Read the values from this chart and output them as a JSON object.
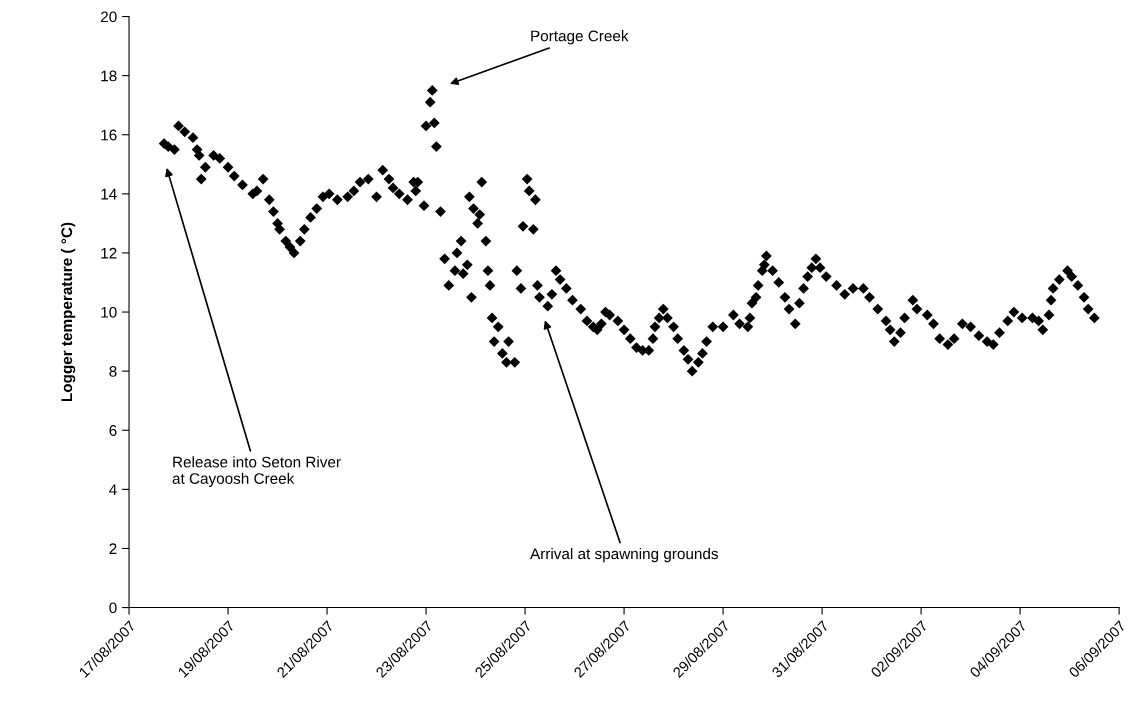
{
  "chart_data": {
    "type": "scatter",
    "ylabel": "Logger temperature ( °C)",
    "marker": "diamond",
    "grid": false,
    "legend": false,
    "xlim": [
      "2007-08-17",
      "2007-09-06"
    ],
    "xticks": [
      {
        "value": "2007-08-17",
        "label": "17/08/2007"
      },
      {
        "value": "2007-08-19",
        "label": "19/08/2007"
      },
      {
        "value": "2007-08-21",
        "label": "21/08/2007"
      },
      {
        "value": "2007-08-23",
        "label": "23/08/2007"
      },
      {
        "value": "2007-08-25",
        "label": "25/08/2007"
      },
      {
        "value": "2007-08-27",
        "label": "27/08/2007"
      },
      {
        "value": "2007-08-29",
        "label": "29/08/2007"
      },
      {
        "value": "2007-08-31",
        "label": "31/08/2007"
      },
      {
        "value": "2007-09-02",
        "label": "02/09/2007"
      },
      {
        "value": "2007-09-04",
        "label": "04/09/2007"
      },
      {
        "value": "2007-09-06",
        "label": "06/09/2007"
      }
    ],
    "ylim": [
      0,
      20
    ],
    "yticks": [
      0,
      2,
      4,
      6,
      8,
      10,
      12,
      14,
      16,
      18,
      20
    ],
    "annotations": [
      "Release into Seton River\nat Cayoosh Creek",
      "Portage Creek",
      "Arrival at spawning grounds"
    ],
    "series": [
      {
        "color": "#000000",
        "x": [
          "2007-08-17T17:00",
          "2007-08-17T19:00",
          "2007-08-17T22:00",
          "2007-08-18T00:00",
          "2007-08-18T03:00",
          "2007-08-18T07:00",
          "2007-08-18T09:00",
          "2007-08-18T10:00",
          "2007-08-18T11:00",
          "2007-08-18T13:00",
          "2007-08-18T17:00",
          "2007-08-18T20:00",
          "2007-08-19T00:00",
          "2007-08-19T03:00",
          "2007-08-19T07:00",
          "2007-08-19T12:00",
          "2007-08-19T14:00",
          "2007-08-19T17:00",
          "2007-08-19T20:00",
          "2007-08-19T22:00",
          "2007-08-20T00:00",
          "2007-08-20T01:00",
          "2007-08-20T04:00",
          "2007-08-20T06:00",
          "2007-08-20T08:00",
          "2007-08-20T11:00",
          "2007-08-20T13:00",
          "2007-08-20T16:00",
          "2007-08-20T19:00",
          "2007-08-20T22:00",
          "2007-08-21T01:00",
          "2007-08-21T05:00",
          "2007-08-21T10:00",
          "2007-08-21T13:00",
          "2007-08-21T16:00",
          "2007-08-21T20:00",
          "2007-08-22T00:00",
          "2007-08-22T03:00",
          "2007-08-22T06:00",
          "2007-08-22T08:00",
          "2007-08-22T11:00",
          "2007-08-22T15:00",
          "2007-08-22T18:00",
          "2007-08-22T19:00",
          "2007-08-22T20:00",
          "2007-08-22T23:00",
          "2007-08-23T00:00",
          "2007-08-23T02:00",
          "2007-08-23T03:00",
          "2007-08-23T04:00",
          "2007-08-23T05:00",
          "2007-08-23T07:00",
          "2007-08-23T09:00",
          "2007-08-23T11:00",
          "2007-08-23T14:00",
          "2007-08-23T15:00",
          "2007-08-23T17:00",
          "2007-08-23T18:00",
          "2007-08-23T20:00",
          "2007-08-23T21:00",
          "2007-08-23T22:00",
          "2007-08-23T23:00",
          "2007-08-24T01:00",
          "2007-08-24T02:00",
          "2007-08-24T03:00",
          "2007-08-24T05:00",
          "2007-08-24T06:00",
          "2007-08-24T07:00",
          "2007-08-24T08:00",
          "2007-08-24T09:00",
          "2007-08-24T11:00",
          "2007-08-24T13:00",
          "2007-08-24T15:00",
          "2007-08-24T16:00",
          "2007-08-24T19:00",
          "2007-08-24T20:00",
          "2007-08-24T22:00",
          "2007-08-24T23:00",
          "2007-08-25T01:00",
          "2007-08-25T02:00",
          "2007-08-25T04:00",
          "2007-08-25T05:00",
          "2007-08-25T06:00",
          "2007-08-25T07:00",
          "2007-08-25T11:00",
          "2007-08-25T13:00",
          "2007-08-25T15:00",
          "2007-08-25T17:00",
          "2007-08-25T20:00",
          "2007-08-25T23:00",
          "2007-08-26T03:00",
          "2007-08-26T06:00",
          "2007-08-26T09:00",
          "2007-08-26T11:00",
          "2007-08-26T13:00",
          "2007-08-26T15:00",
          "2007-08-26T17:00",
          "2007-08-26T21:00",
          "2007-08-27T00:00",
          "2007-08-27T03:00",
          "2007-08-27T06:00",
          "2007-08-27T09:00",
          "2007-08-27T12:00",
          "2007-08-27T14:00",
          "2007-08-27T15:00",
          "2007-08-27T17:00",
          "2007-08-27T19:00",
          "2007-08-27T21:00",
          "2007-08-28T00:00",
          "2007-08-28T02:00",
          "2007-08-28T05:00",
          "2007-08-28T07:00",
          "2007-08-28T09:00",
          "2007-08-28T12:00",
          "2007-08-28T14:00",
          "2007-08-28T16:00",
          "2007-08-28T19:00",
          "2007-08-29T00:00",
          "2007-08-29T05:00",
          "2007-08-29T08:00",
          "2007-08-29T12:00",
          "2007-08-29T13:00",
          "2007-08-29T14:00",
          "2007-08-29T16:00",
          "2007-08-29T17:00",
          "2007-08-29T19:00",
          "2007-08-29T20:00",
          "2007-08-29T21:00",
          "2007-08-30T00:00",
          "2007-08-30T03:00",
          "2007-08-30T06:00",
          "2007-08-30T08:00",
          "2007-08-30T11:00",
          "2007-08-30T13:00",
          "2007-08-30T15:00",
          "2007-08-30T17:00",
          "2007-08-30T19:00",
          "2007-08-30T21:00",
          "2007-08-30T23:00",
          "2007-08-31T02:00",
          "2007-08-31T07:00",
          "2007-08-31T11:00",
          "2007-08-31T15:00",
          "2007-08-31T20:00",
          "2007-08-31T23:00",
          "2007-09-01T03:00",
          "2007-09-01T07:00",
          "2007-09-01T09:00",
          "2007-09-01T11:00",
          "2007-09-01T14:00",
          "2007-09-01T16:00",
          "2007-09-01T20:00",
          "2007-09-01T22:00",
          "2007-09-02T03:00",
          "2007-09-02T06:00",
          "2007-09-02T09:00",
          "2007-09-02T13:00",
          "2007-09-02T16:00",
          "2007-09-02T20:00",
          "2007-09-03T00:00",
          "2007-09-03T04:00",
          "2007-09-03T08:00",
          "2007-09-03T11:00",
          "2007-09-03T14:00",
          "2007-09-03T18:00",
          "2007-09-03T21:00",
          "2007-09-04T01:00",
          "2007-09-04T06:00",
          "2007-09-04T09:00",
          "2007-09-04T11:00",
          "2007-09-04T14:00",
          "2007-09-04T15:00",
          "2007-09-04T16:00",
          "2007-09-04T19:00",
          "2007-09-04T23:00",
          "2007-09-05T01:00",
          "2007-09-05T04:00",
          "2007-09-05T07:00",
          "2007-09-05T09:00",
          "2007-09-05T12:00"
        ],
        "values": [
          15.7,
          15.6,
          15.5,
          16.3,
          16.1,
          15.9,
          15.5,
          15.3,
          14.5,
          14.9,
          15.3,
          15.2,
          14.9,
          14.6,
          14.3,
          14.0,
          14.1,
          14.5,
          13.8,
          13.4,
          13.0,
          12.8,
          12.4,
          12.2,
          12.0,
          12.4,
          12.8,
          13.2,
          13.5,
          13.9,
          14.0,
          13.8,
          13.9,
          14.1,
          14.4,
          14.5,
          13.9,
          14.8,
          14.5,
          14.2,
          14.0,
          13.8,
          14.4,
          14.1,
          14.4,
          13.6,
          16.3,
          17.1,
          17.5,
          16.4,
          15.6,
          13.4,
          11.8,
          10.9,
          11.4,
          12.0,
          12.4,
          11.3,
          11.6,
          13.9,
          10.5,
          13.5,
          13.0,
          13.3,
          14.4,
          12.4,
          11.4,
          10.9,
          9.8,
          9.0,
          9.5,
          8.6,
          8.3,
          9.0,
          8.3,
          11.4,
          10.8,
          12.9,
          14.5,
          14.1,
          12.8,
          13.8,
          10.9,
          10.5,
          10.2,
          10.6,
          11.4,
          11.1,
          10.8,
          10.4,
          10.1,
          9.7,
          9.5,
          9.4,
          9.6,
          10.0,
          9.9,
          9.7,
          9.4,
          9.1,
          8.8,
          8.7,
          8.7,
          9.1,
          9.5,
          9.8,
          10.1,
          9.8,
          9.5,
          9.1,
          8.7,
          8.4,
          8.0,
          8.3,
          8.6,
          9.0,
          9.5,
          9.5,
          9.9,
          9.6,
          9.5,
          9.8,
          10.3,
          10.5,
          10.9,
          11.4,
          11.6,
          11.9,
          11.4,
          11.0,
          10.5,
          10.1,
          9.6,
          10.3,
          10.8,
          11.2,
          11.5,
          11.8,
          11.5,
          11.2,
          10.9,
          10.6,
          10.8,
          10.8,
          10.5,
          10.1,
          9.7,
          9.4,
          9.0,
          9.3,
          9.8,
          10.4,
          10.1,
          9.9,
          9.6,
          9.1,
          8.9,
          9.1,
          9.6,
          9.5,
          9.2,
          9.0,
          8.9,
          9.3,
          9.7,
          10.0,
          9.8,
          9.8,
          9.7,
          9.4,
          9.9,
          10.4,
          10.8,
          11.1,
          11.4,
          11.2,
          10.9,
          10.5,
          10.1,
          9.8
        ]
      }
    ]
  }
}
